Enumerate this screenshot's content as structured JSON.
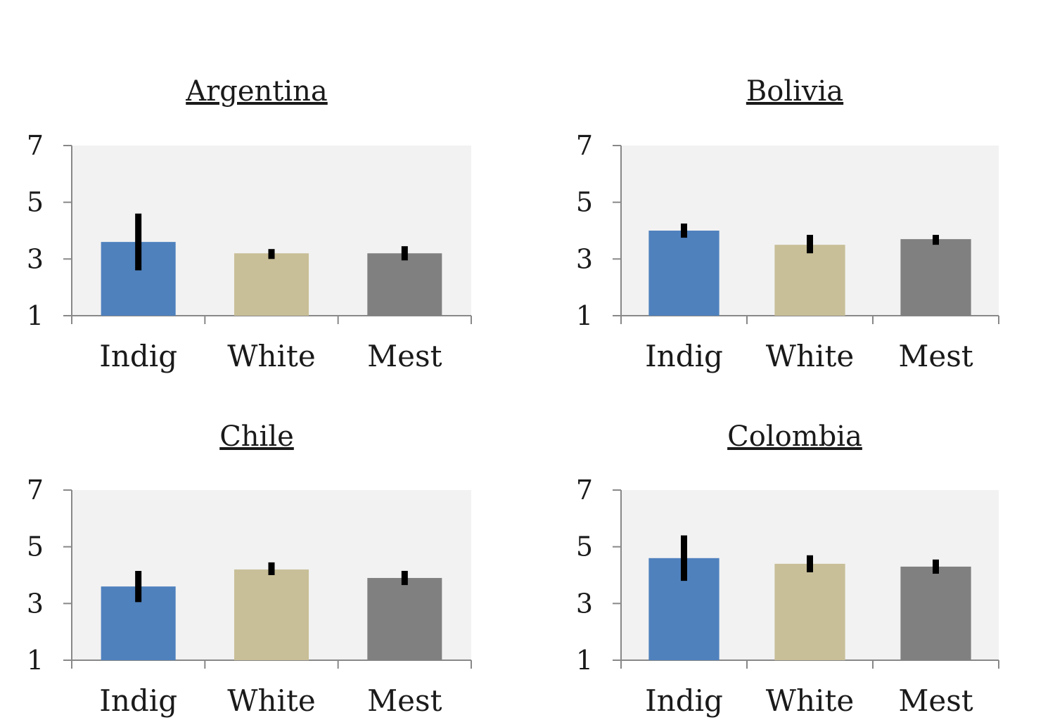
{
  "chart_data": [
    {
      "type": "bar",
      "title": "Argentina",
      "categories": [
        "Indig",
        "White",
        "Mest"
      ],
      "values": [
        3.6,
        3.2,
        3.2
      ],
      "error_bars": [
        [
          2.6,
          4.6
        ],
        [
          3.0,
          3.35
        ],
        [
          2.95,
          3.45
        ]
      ],
      "ylim": [
        1,
        7
      ],
      "yticks": [
        "1",
        "3",
        "5",
        "7"
      ],
      "grid": false
    },
    {
      "type": "bar",
      "title": "Bolivia",
      "categories": [
        "Indig",
        "White",
        "Mest"
      ],
      "values": [
        4.0,
        3.5,
        3.7
      ],
      "error_bars": [
        [
          3.75,
          4.25
        ],
        [
          3.2,
          3.85
        ],
        [
          3.5,
          3.85
        ]
      ],
      "ylim": [
        1,
        7
      ],
      "yticks": [
        "1",
        "3",
        "5",
        "7"
      ],
      "grid": false
    },
    {
      "type": "bar",
      "title": "Chile",
      "categories": [
        "Indig",
        "White",
        "Mest"
      ],
      "values": [
        3.6,
        4.2,
        3.9
      ],
      "error_bars": [
        [
          3.05,
          4.15
        ],
        [
          4.0,
          4.45
        ],
        [
          3.65,
          4.15
        ]
      ],
      "ylim": [
        1,
        7
      ],
      "yticks": [
        "1",
        "3",
        "5",
        "7"
      ],
      "grid": false
    },
    {
      "type": "bar",
      "title": "Colombia",
      "categories": [
        "Indig",
        "White",
        "Mest"
      ],
      "values": [
        4.6,
        4.4,
        4.3
      ],
      "error_bars": [
        [
          3.8,
          5.4
        ],
        [
          4.1,
          4.7
        ],
        [
          4.05,
          4.55
        ]
      ],
      "ylim": [
        1,
        7
      ],
      "yticks": [
        "1",
        "3",
        "5",
        "7"
      ],
      "grid": false
    }
  ],
  "colors": {
    "Indig": "#4f81bd",
    "White": "#c8bf98",
    "Mest": "#808080",
    "plot_background": "#f2f2f2",
    "axis": "#888888",
    "error_bar": "#000000"
  }
}
